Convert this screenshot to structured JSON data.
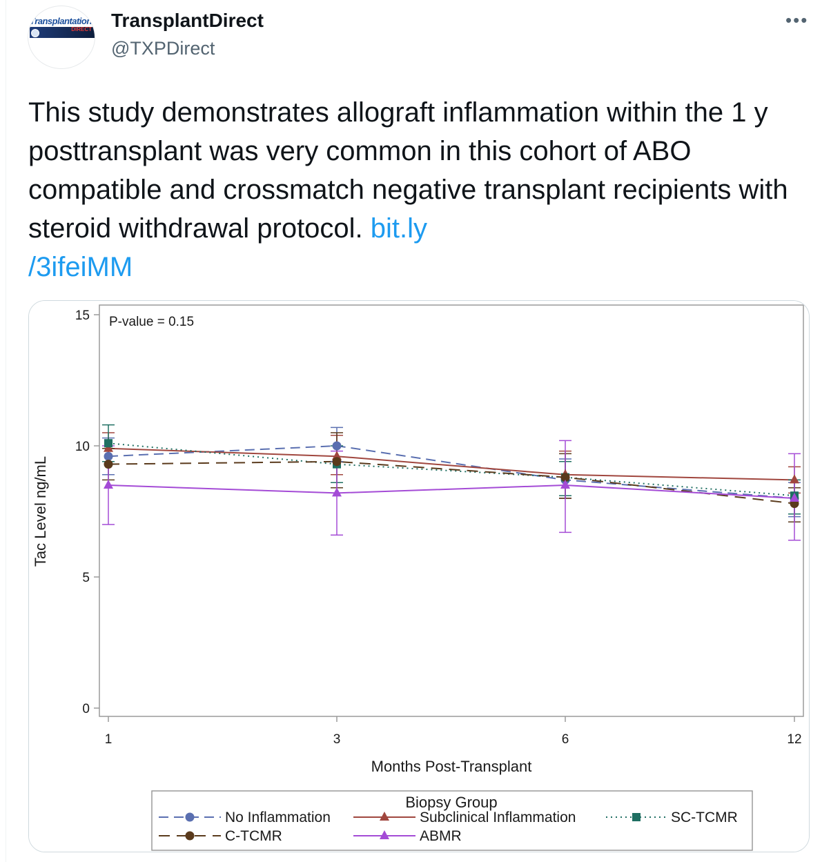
{
  "tweet": {
    "display_name": "TransplantDirect",
    "handle": "@TXPDirect",
    "more_icon": "more-horizontal-icon",
    "avatar": {
      "logo_text": "Transplantation",
      "logo_subtext": "DIRECT"
    },
    "body_text": "This study demonstrates allograft inflammation within the 1 y posttransplant was very common in this cohort of ABO compatible and crossmatch negative transplant recipients with steroid withdrawal protocol. ",
    "link_text": "bit.ly/3ifeiMM",
    "link_line1": "bit.ly",
    "link_line2": "/3ifeiMM"
  },
  "chart_data": {
    "type": "line",
    "annotation": "P-value = 0.15",
    "xlabel": "Months Post-Transplant",
    "ylabel": "Tac Level ng/mL",
    "x_categories": [
      "1",
      "3",
      "6",
      "12"
    ],
    "ylim": [
      0,
      15
    ],
    "yticks": [
      "0",
      "5",
      "10",
      "15"
    ],
    "legend_title": "Biopsy Group",
    "legend_position": "bottom",
    "series": [
      {
        "name": "No Inflammation",
        "color": "#5a6fb0",
        "marker": "circle",
        "dash": "dash",
        "values": [
          9.6,
          10.0,
          8.7,
          8.0
        ],
        "err_low": [
          8.9,
          9.4,
          8.0,
          7.3
        ],
        "err_high": [
          10.3,
          10.7,
          9.5,
          8.6
        ]
      },
      {
        "name": "Subclinical Inflammation",
        "color": "#a0463e",
        "marker": "triangle",
        "dash": "solid",
        "values": [
          9.9,
          9.6,
          8.9,
          8.7
        ],
        "err_low": [
          9.4,
          8.9,
          8.0,
          8.2
        ],
        "err_high": [
          10.5,
          10.4,
          9.8,
          9.2
        ]
      },
      {
        "name": "SC-TCMR",
        "color": "#1f6f62",
        "marker": "square",
        "dash": "dot",
        "values": [
          10.1,
          9.3,
          8.8,
          8.1
        ],
        "err_low": [
          9.4,
          8.6,
          8.1,
          7.4
        ],
        "err_high": [
          10.8,
          10.0,
          9.4,
          8.7
        ]
      },
      {
        "name": "C-TCMR",
        "color": "#5a3a1c",
        "marker": "circle",
        "dash": "longdash",
        "values": [
          9.3,
          9.4,
          8.8,
          7.8
        ],
        "err_low": [
          8.7,
          8.4,
          8.0,
          7.1
        ],
        "err_high": [
          9.9,
          10.5,
          9.7,
          8.4
        ]
      },
      {
        "name": "ABMR",
        "color": "#a44bd6",
        "marker": "triangle",
        "dash": "solid",
        "values": [
          8.5,
          8.2,
          8.5,
          8.0
        ],
        "err_low": [
          7.0,
          6.6,
          6.7,
          6.4
        ],
        "err_high": [
          10.0,
          9.8,
          10.2,
          9.7
        ]
      }
    ]
  }
}
